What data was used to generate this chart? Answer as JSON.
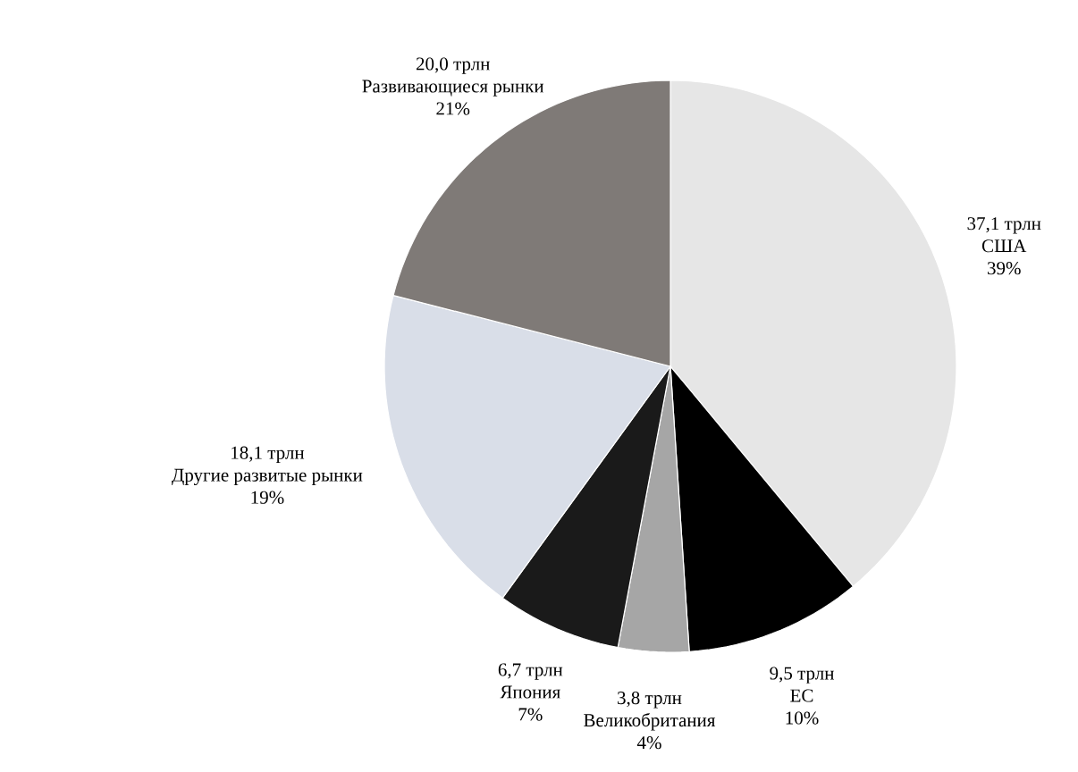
{
  "chart_data": {
    "type": "pie",
    "categories": [
      "США",
      "ЕС",
      "Великобритания",
      "Япония",
      "Другие развитые рынки",
      "Развивающиеся рынки"
    ],
    "values": [
      37.1,
      9.5,
      3.8,
      6.7,
      18.1,
      20.0
    ],
    "value_labels": [
      "37,1 трлн",
      "9,5 трлн",
      "3,8 трлн",
      "6,7 трлн",
      "18,1 трлн",
      "20,0 трлн"
    ],
    "annotations": [
      "39%",
      "10%",
      "4%",
      "7%",
      "19%",
      "21%"
    ],
    "colors": [
      "#e6e6e6",
      "#000000",
      "#a6a6a6",
      "#1a1a1a",
      "#d9dee8",
      "#7f7a77"
    ]
  }
}
